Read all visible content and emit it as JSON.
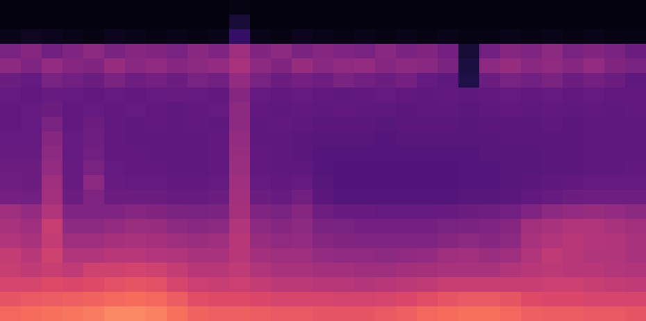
{
  "chart_data": {
    "type": "heatmap",
    "zlim": [
      0,
      100
    ],
    "tick_labels": false,
    "cells": [
      [
        2,
        2,
        2,
        2,
        2,
        2,
        2,
        2,
        2,
        2,
        2,
        3,
        2,
        2,
        2,
        2,
        2,
        2,
        2,
        2,
        2,
        2,
        2,
        2,
        2,
        2,
        2,
        2,
        2,
        2,
        2
      ],
      [
        2,
        2,
        2,
        2,
        2,
        2,
        2,
        2,
        2,
        2,
        2,
        10,
        2,
        2,
        2,
        2,
        2,
        2,
        2,
        2,
        2,
        2,
        2,
        2,
        2,
        2,
        2,
        2,
        2,
        2,
        2
      ],
      [
        4,
        6,
        5,
        4,
        3,
        5,
        4,
        3,
        4,
        3,
        4,
        22,
        4,
        3,
        5,
        4,
        3,
        4,
        3,
        4,
        3,
        4,
        3,
        3,
        4,
        3,
        4,
        3,
        4,
        3,
        3
      ],
      [
        44,
        48,
        42,
        46,
        50,
        45,
        48,
        47,
        44,
        49,
        46,
        55,
        47,
        50,
        45,
        48,
        46,
        44,
        49,
        45,
        47,
        43,
        10,
        42,
        48,
        46,
        50,
        44,
        47,
        45,
        40
      ],
      [
        50,
        46,
        52,
        48,
        47,
        53,
        49,
        51,
        48,
        50,
        52,
        58,
        50,
        47,
        53,
        49,
        51,
        52,
        48,
        50,
        49,
        45,
        12,
        50,
        53,
        49,
        51,
        48,
        52,
        47,
        44
      ],
      [
        40,
        38,
        44,
        42,
        40,
        45,
        41,
        43,
        40,
        44,
        42,
        52,
        44,
        40,
        43,
        41,
        45,
        42,
        40,
        43,
        38,
        36,
        14,
        40,
        44,
        42,
        45,
        40,
        43,
        40,
        36
      ],
      [
        38,
        37,
        39,
        38,
        37,
        38,
        37,
        38,
        39,
        38,
        37,
        48,
        38,
        37,
        38,
        37,
        36,
        37,
        38,
        37,
        36,
        37,
        36,
        37,
        38,
        37,
        38,
        37,
        38,
        37,
        37
      ],
      [
        37,
        38,
        40,
        37,
        38,
        37,
        38,
        37,
        36,
        37,
        38,
        50,
        37,
        36,
        37,
        36,
        37,
        36,
        36,
        35,
        36,
        36,
        35,
        36,
        37,
        36,
        37,
        36,
        37,
        36,
        37
      ],
      [
        37,
        38,
        44,
        37,
        40,
        37,
        36,
        37,
        36,
        37,
        36,
        50,
        36,
        37,
        36,
        35,
        35,
        35,
        34,
        35,
        35,
        35,
        34,
        35,
        35,
        35,
        36,
        35,
        36,
        36,
        36
      ],
      [
        38,
        38,
        48,
        38,
        41,
        37,
        36,
        36,
        36,
        36,
        37,
        52,
        36,
        36,
        35,
        34,
        34,
        34,
        33,
        34,
        34,
        34,
        34,
        34,
        35,
        35,
        35,
        35,
        36,
        36,
        36
      ],
      [
        39,
        39,
        50,
        38,
        42,
        37,
        37,
        36,
        36,
        36,
        37,
        53,
        37,
        36,
        35,
        33,
        33,
        33,
        33,
        33,
        33,
        33,
        33,
        34,
        34,
        34,
        35,
        35,
        36,
        36,
        36
      ],
      [
        40,
        40,
        52,
        39,
        44,
        38,
        37,
        37,
        36,
        36,
        37,
        54,
        37,
        36,
        36,
        33,
        32,
        32,
        32,
        32,
        32,
        32,
        33,
        33,
        34,
        34,
        35,
        35,
        36,
        36,
        37
      ],
      [
        41,
        40,
        55,
        39,
        50,
        39,
        38,
        38,
        37,
        37,
        38,
        55,
        38,
        37,
        38,
        34,
        32,
        32,
        32,
        32,
        32,
        32,
        33,
        33,
        34,
        35,
        36,
        37,
        38,
        38,
        38
      ],
      [
        43,
        42,
        56,
        40,
        46,
        40,
        40,
        40,
        39,
        39,
        40,
        56,
        40,
        39,
        42,
        35,
        33,
        33,
        33,
        33,
        33,
        33,
        34,
        34,
        35,
        37,
        39,
        40,
        41,
        41,
        41
      ],
      [
        55,
        52,
        60,
        46,
        46,
        46,
        48,
        47,
        45,
        44,
        45,
        57,
        46,
        44,
        48,
        41,
        39,
        39,
        38,
        38,
        38,
        39,
        40,
        41,
        42,
        46,
        50,
        52,
        53,
        52,
        50
      ],
      [
        58,
        55,
        66,
        50,
        50,
        52,
        54,
        53,
        50,
        49,
        50,
        60,
        50,
        48,
        50,
        45,
        44,
        43,
        43,
        43,
        43,
        44,
        45,
        46,
        48,
        56,
        58,
        60,
        60,
        58,
        56
      ],
      [
        60,
        58,
        65,
        55,
        55,
        57,
        58,
        57,
        55,
        54,
        55,
        62,
        53,
        51,
        52,
        48,
        47,
        46,
        46,
        46,
        46,
        48,
        50,
        48,
        50,
        58,
        60,
        62,
        61,
        60,
        58
      ],
      [
        65,
        62,
        68,
        60,
        60,
        62,
        62,
        61,
        60,
        58,
        58,
        62,
        56,
        55,
        55,
        52,
        51,
        51,
        50,
        51,
        52,
        55,
        56,
        54,
        55,
        60,
        64,
        62,
        60,
        60,
        58
      ],
      [
        66,
        64,
        66,
        64,
        68,
        68,
        69,
        68,
        65,
        62,
        62,
        64,
        60,
        58,
        58,
        56,
        56,
        55,
        55,
        56,
        57,
        58,
        58,
        58,
        60,
        62,
        63,
        62,
        62,
        61,
        60
      ],
      [
        70,
        70,
        72,
        71,
        72,
        74,
        75,
        74,
        70,
        67,
        66,
        67,
        65,
        63,
        63,
        62,
        62,
        61,
        62,
        63,
        64,
        66,
        66,
        66,
        66,
        66,
        67,
        67,
        66,
        65,
        64
      ],
      [
        75,
        76,
        77,
        78,
        79,
        80,
        81,
        80,
        77,
        73,
        72,
        72,
        71,
        70,
        70,
        70,
        69,
        69,
        70,
        71,
        73,
        75,
        76,
        76,
        75,
        72,
        71,
        71,
        70,
        70,
        70
      ],
      [
        80,
        81,
        82,
        83,
        84,
        86,
        86,
        85,
        82,
        79,
        78,
        78,
        77,
        76,
        76,
        75,
        75,
        75,
        76,
        78,
        80,
        81,
        82,
        82,
        80,
        78,
        77,
        77,
        76,
        76,
        75
      ]
    ]
  }
}
